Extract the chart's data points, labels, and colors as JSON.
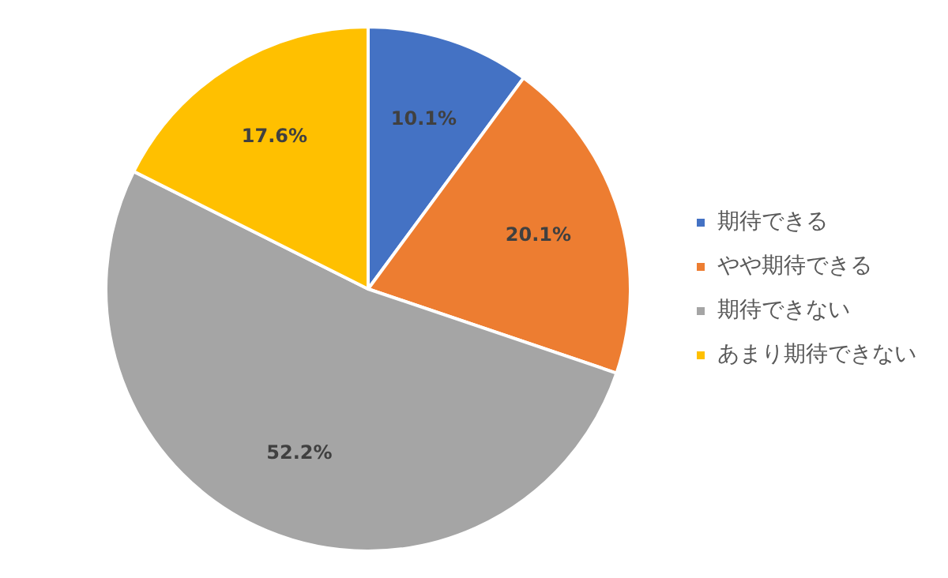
{
  "chart_data": {
    "type": "pie",
    "categories": [
      "期待できる",
      "やや期待できる",
      "期待できない",
      "あまり期待できない"
    ],
    "values": [
      10.1,
      20.1,
      52.2,
      17.6
    ],
    "colors": [
      "#4472c4",
      "#ed7d31",
      "#a5a5a5",
      "#ffc000"
    ],
    "value_labels": [
      "10.1%",
      "20.1%",
      "52.2%",
      "17.6%"
    ],
    "legend": "right"
  }
}
